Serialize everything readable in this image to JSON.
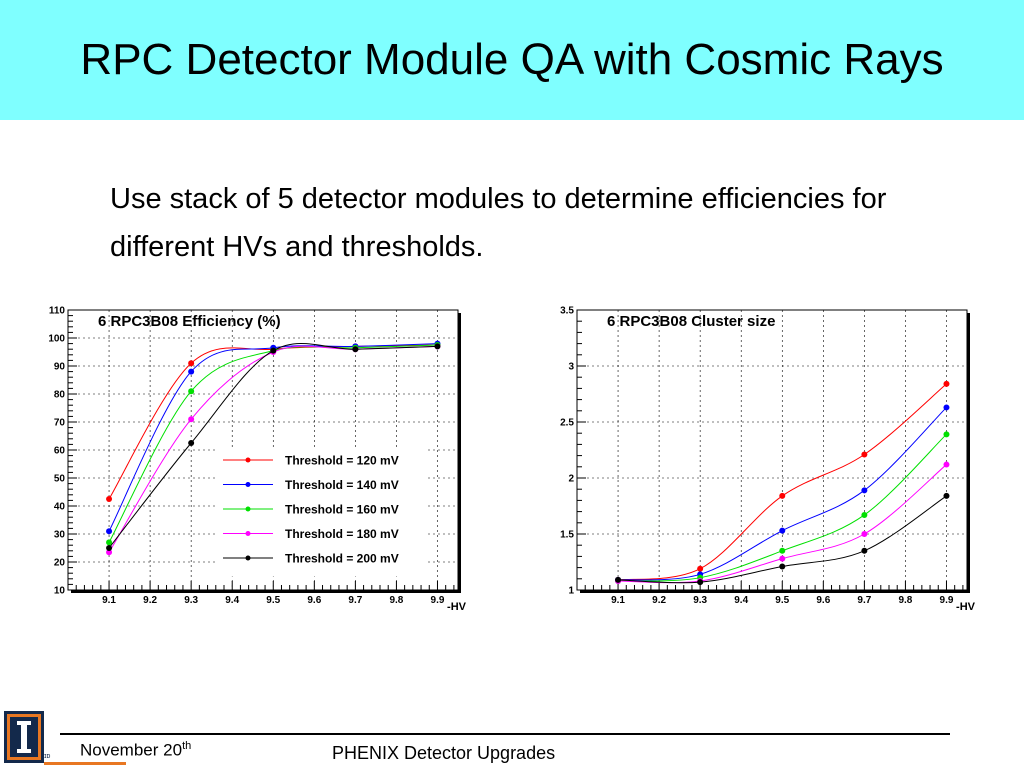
{
  "slide": {
    "title": "RPC Detector Module QA with Cosmic Rays",
    "bullet": "Use stack of 5 detector modules to determine efficiencies for different HVs and thresholds.",
    "footer_date": "November 20",
    "footer_date_sup": "th",
    "footer_center": "PHENIX Detector Upgrades",
    "logo_sub": "ɪᴅ"
  },
  "colors": {
    "title_bg": "#7fffff",
    "series": [
      "#ff0000",
      "#0000ff",
      "#00e000",
      "#ff00ff",
      "#000000"
    ]
  },
  "chart_data": [
    {
      "type": "line",
      "title": "6 RPC3B08 Efficiency (%)",
      "xlabel": "-HV",
      "ylabel": "",
      "xlim": [
        9.0,
        9.95
      ],
      "ylim": [
        10,
        110
      ],
      "xticks": [
        "9.1",
        "9.2",
        "9.3",
        "9.4",
        "9.5",
        "9.6",
        "9.7",
        "9.8",
        "9.9"
      ],
      "yticks": [
        "10",
        "20",
        "30",
        "40",
        "50",
        "60",
        "70",
        "80",
        "90",
        "100",
        "110"
      ],
      "grid": true,
      "legend_placement": "bottom-right",
      "x": [
        9.1,
        9.3,
        9.5,
        9.7,
        9.9
      ],
      "series": [
        {
          "name": "Threshold = 120 mV",
          "color": "#ff0000",
          "values": [
            42.5,
            91,
            96,
            97,
            97.5
          ]
        },
        {
          "name": "Threshold = 140 mV",
          "color": "#0000ff",
          "values": [
            31,
            88,
            96.5,
            97,
            98
          ]
        },
        {
          "name": "Threshold = 160 mV",
          "color": "#00e000",
          "values": [
            27,
            81,
            95.5,
            96.5,
            97.5
          ]
        },
        {
          "name": "Threshold = 180 mV",
          "color": "#ff00ff",
          "values": [
            23.5,
            71,
            95,
            96,
            97
          ]
        },
        {
          "name": "Threshold = 200 mV",
          "color": "#000000",
          "values": [
            25,
            62.5,
            95.5,
            96,
            97
          ]
        }
      ]
    },
    {
      "type": "line",
      "title": "6 RPC3B08 Cluster size",
      "xlabel": "-HV",
      "ylabel": "",
      "xlim": [
        9.0,
        9.95
      ],
      "ylim": [
        1,
        3.5
      ],
      "xticks": [
        "9.1",
        "9.2",
        "9.3",
        "9.4",
        "9.5",
        "9.6",
        "9.7",
        "9.8",
        "9.9"
      ],
      "yticks": [
        "1",
        "1.5",
        "2",
        "2.5",
        "3",
        "3.5"
      ],
      "grid": true,
      "x": [
        9.1,
        9.3,
        9.5,
        9.7,
        9.9
      ],
      "series": [
        {
          "color": "#ff0000",
          "values": [
            1.09,
            1.19,
            1.84,
            2.21,
            2.84
          ]
        },
        {
          "color": "#0000ff",
          "values": [
            1.09,
            1.14,
            1.53,
            1.89,
            2.63
          ]
        },
        {
          "color": "#00e000",
          "values": [
            1.08,
            1.11,
            1.35,
            1.67,
            2.39
          ]
        },
        {
          "color": "#ff00ff",
          "values": [
            1.08,
            1.08,
            1.28,
            1.5,
            2.12
          ]
        },
        {
          "color": "#000000",
          "values": [
            1.09,
            1.07,
            1.21,
            1.35,
            1.84
          ]
        }
      ]
    }
  ]
}
